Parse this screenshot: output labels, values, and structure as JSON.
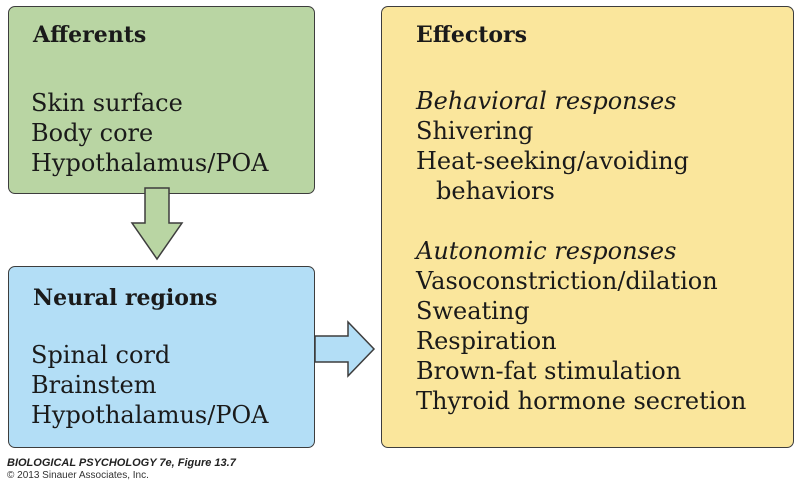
{
  "colors": {
    "afferents_fill": "#b9d5a3",
    "neural_fill": "#b3def6",
    "effectors_fill": "#fae69c",
    "border": "#3d3d3d"
  },
  "afferents": {
    "title": "Afferents",
    "items": [
      "Skin surface",
      "Body core",
      "Hypothalamus/POA"
    ]
  },
  "neural_regions": {
    "title": "Neural regions",
    "items": [
      "Spinal cord",
      "Brainstem",
      "Hypothalamus/POA"
    ]
  },
  "effectors": {
    "title": "Effectors",
    "behavioral": {
      "heading": "Behavioral responses",
      "items": [
        "Shivering",
        "Heat-seeking/avoiding",
        "behaviors"
      ]
    },
    "autonomic": {
      "heading": "Autonomic responses",
      "items": [
        "Vasoconstriction/dilation",
        "Sweating",
        "Respiration",
        "Brown-fat stimulation",
        "Thyroid hormone secretion"
      ]
    }
  },
  "caption": {
    "title": "BIOLOGICAL PSYCHOLOGY 7e, Figure 13.7",
    "copyright": "© 2013 Sinauer Associates, Inc."
  }
}
